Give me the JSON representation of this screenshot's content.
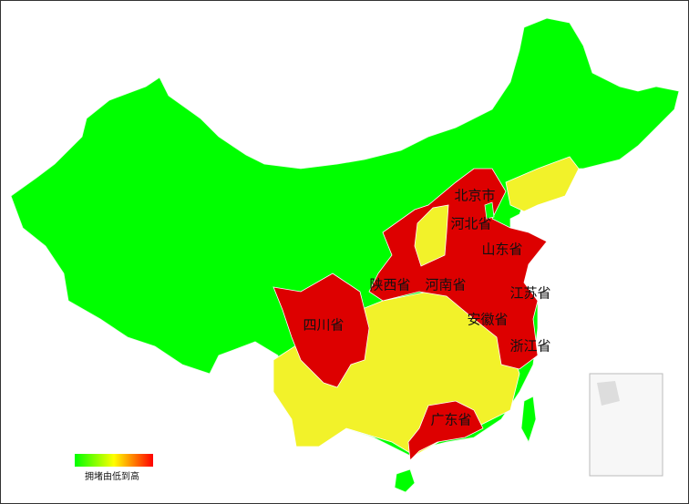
{
  "map": {
    "labels": [
      {
        "name": "北京市"
      },
      {
        "name": "河北省"
      },
      {
        "name": "山东省"
      },
      {
        "name": "陕西省"
      },
      {
        "name": "河南省"
      },
      {
        "name": "江苏省"
      },
      {
        "name": "安徽省"
      },
      {
        "name": "浙江省"
      },
      {
        "name": "四川省"
      },
      {
        "name": "广东省"
      }
    ],
    "legend": {
      "text": "拥堵由低到高",
      "colors": [
        "#00ff00",
        "#ffff00",
        "#ff0000"
      ]
    }
  }
}
